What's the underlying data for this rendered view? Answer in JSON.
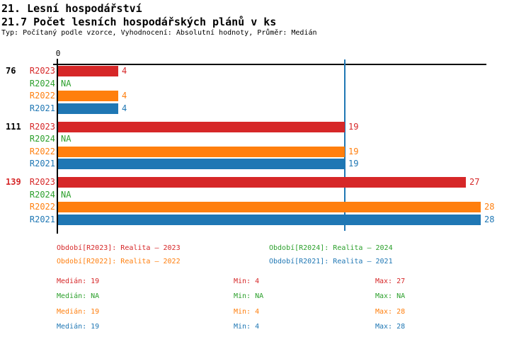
{
  "header": {
    "title1": "21. Lesní hospodářství",
    "title2": "21.7 Počet lesních hospodářských plánů v ks",
    "subtitle": "Typ: Počítaný podle vzorce, Vyhodnocení: Absolutní hodnoty, Průměr: Medián"
  },
  "colors": {
    "R2023": "#d62728",
    "R2024": "#2ca02c",
    "R2022": "#ff7f0e",
    "R2021": "#1f77b4",
    "axis": "#000000"
  },
  "chart_data": {
    "type": "bar",
    "orientation": "horizontal",
    "title": "21.7 Počet lesních hospodářských plánů v ks",
    "xlabel": "",
    "ylabel": "",
    "xlim": [
      0,
      28.4
    ],
    "axis_origin_label": "0",
    "grid": false,
    "legend_position": "bottom",
    "na_text": "NA",
    "median_line": {
      "value": 19,
      "color": "#1f77b4"
    },
    "series_order": [
      "R2023",
      "R2024",
      "R2022",
      "R2021"
    ],
    "groups": [
      {
        "label": "76",
        "label_color": "#000000",
        "values": {
          "R2023": 4,
          "R2024": "NA",
          "R2022": 4,
          "R2021": 4
        }
      },
      {
        "label": "111",
        "label_color": "#000000",
        "values": {
          "R2023": 19,
          "R2024": "NA",
          "R2022": 19,
          "R2021": 19
        }
      },
      {
        "label": "139",
        "label_color": "#d62728",
        "values": {
          "R2023": 27,
          "R2024": "NA",
          "R2022": 28,
          "R2021": 28
        }
      }
    ]
  },
  "legend": [
    {
      "label": "Období[R2023]: Realita – 2023",
      "color": "#d62728"
    },
    {
      "label": "Období[R2024]: Realita – 2024",
      "color": "#2ca02c"
    },
    {
      "label": "Období[R2022]: Realita – 2022",
      "color": "#ff7f0e"
    },
    {
      "label": "Období[R2021]: Realita – 2021",
      "color": "#1f77b4"
    }
  ],
  "stats": {
    "col_labels": [
      "Medián",
      "Min",
      "Max"
    ],
    "rows": [
      {
        "series": "R2023",
        "color": "#d62728",
        "median": "19",
        "min": "4",
        "max": "27"
      },
      {
        "series": "R2024",
        "color": "#2ca02c",
        "median": "NA",
        "min": "NA",
        "max": "NA"
      },
      {
        "series": "R2022",
        "color": "#ff7f0e",
        "median": "19",
        "min": "4",
        "max": "28"
      },
      {
        "series": "R2021",
        "color": "#1f77b4",
        "median": "19",
        "min": "4",
        "max": "28"
      }
    ]
  }
}
